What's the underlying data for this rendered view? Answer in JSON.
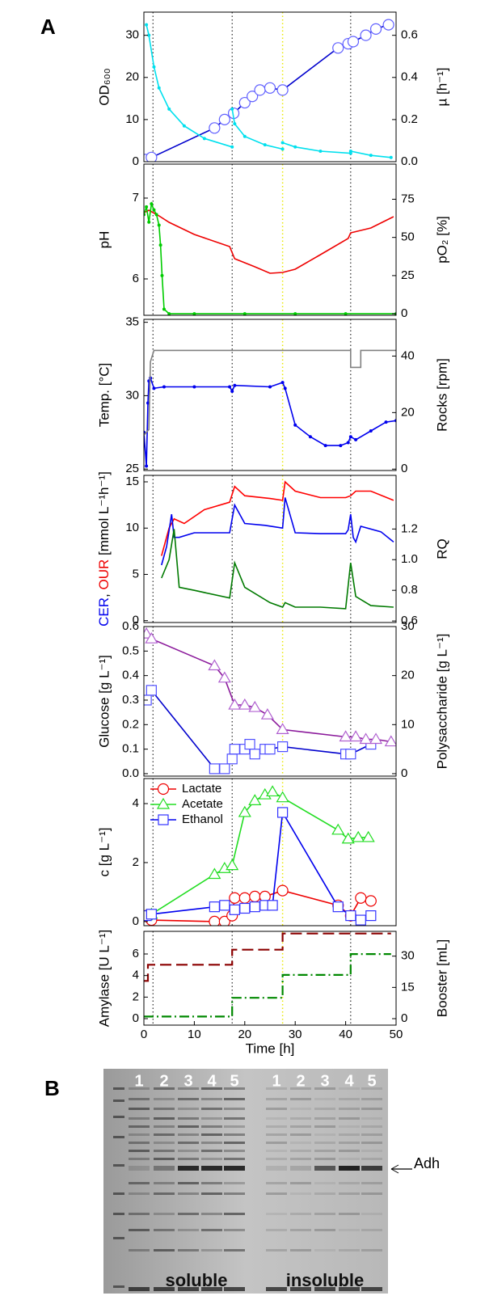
{
  "panel_labels": [
    "A",
    "B"
  ],
  "chart_data": [
    {
      "type": "line",
      "ylabel": "OD₆₀₀",
      "y2label": "µ [h⁻¹]",
      "xlim": [
        0,
        50
      ],
      "ylim": [
        0,
        35.5
      ],
      "yticks": [
        0,
        10,
        20,
        30
      ],
      "y2lim": [
        0,
        0.71
      ],
      "y2ticks": [
        {
          "value": 0,
          "label": "0.0"
        },
        0.2,
        0.4,
        0.6
      ],
      "vlines": [
        1.8,
        17.5,
        27.5,
        41
      ],
      "vline_colors": [
        "#000000",
        "#000000",
        "#e8e800",
        "#000000"
      ],
      "series": [
        {
          "color": "#0000cd",
          "marker": "circle",
          "marker_color": "#6060ff",
          "x": [
            0.3,
            1.5,
            14,
            16,
            17.8,
            20,
            21.5,
            23,
            25,
            27.5,
            38.5,
            40.5,
            41.5,
            44,
            46,
            48.5
          ],
          "values": [
            0.5,
            1,
            8,
            10,
            11.5,
            14,
            15.5,
            17,
            17.5,
            17,
            27,
            28,
            28.5,
            30,
            31.5,
            32.5
          ]
        },
        {
          "color": "#00e0ee",
          "marker": "dot",
          "axis": "y2",
          "x": [
            0.5,
            1,
            2,
            3,
            5,
            8,
            12,
            17.5,
            17.5,
            17.5,
            18,
            20,
            24,
            27.5,
            27.5,
            27.5,
            30,
            35,
            41,
            41,
            41,
            45,
            49
          ],
          "values": [
            0.65,
            0.6,
            0.45,
            0.35,
            0.25,
            0.17,
            0.11,
            0.07,
            null,
            0.25,
            0.18,
            0.12,
            0.08,
            0.06,
            null,
            0.09,
            0.07,
            0.05,
            0.04,
            null,
            0.05,
            0.03,
            0.02
          ]
        }
      ]
    },
    {
      "type": "line",
      "ylabel": "pH",
      "y2label": "pO₂ [%]",
      "xlim": [
        0,
        50
      ],
      "ylim": [
        5.55,
        7.42
      ],
      "yticks": [
        6,
        7
      ],
      "y2lim": [
        -1,
        98
      ],
      "y2ticks": [
        0,
        25,
        50,
        75
      ],
      "series": [
        {
          "color": "#ee0000",
          "marker": "none",
          "x": [
            0,
            1,
            3,
            5,
            10,
            17,
            18,
            22,
            25,
            27.5,
            30,
            35,
            40.5,
            41,
            45,
            49.5
          ],
          "values": [
            6.82,
            6.85,
            6.78,
            6.7,
            6.55,
            6.4,
            6.25,
            6.15,
            6.07,
            6.08,
            6.12,
            6.3,
            6.5,
            6.57,
            6.63,
            6.77
          ]
        },
        {
          "color": "#00cc00",
          "marker": "dot",
          "axis": "y2",
          "x": [
            0,
            0.5,
            1,
            1.5,
            2,
            2.5,
            3,
            3.3,
            3.6,
            4,
            5,
            10,
            20,
            30,
            40,
            50
          ],
          "values": [
            65,
            70,
            60,
            72,
            68,
            65,
            58,
            45,
            25,
            3,
            0,
            0,
            0,
            0,
            0,
            0
          ]
        }
      ]
    },
    {
      "type": "line",
      "ylabel": "Temp. [°C]",
      "y2label": "Rocks [rpm]",
      "xlim": [
        0,
        50
      ],
      "ylim": [
        24.9,
        35.2
      ],
      "yticks": [
        25,
        30,
        35
      ],
      "y2lim": [
        -0.5,
        53
      ],
      "y2ticks": [
        0,
        20,
        40
      ],
      "series": [
        {
          "color": "#0000ee",
          "marker": "dot",
          "x": [
            0,
            0.5,
            0.8,
            1,
            1.3,
            2,
            4,
            10,
            17,
            17.5,
            18,
            25,
            27.5,
            28,
            30,
            33,
            36,
            39,
            40.5,
            41,
            42,
            45,
            48,
            50
          ],
          "values": [
            27.5,
            25.2,
            29.5,
            31,
            31.2,
            30.5,
            30.6,
            30.6,
            30.6,
            30.3,
            30.7,
            30.6,
            30.9,
            30.5,
            28,
            27.2,
            26.6,
            26.6,
            26.8,
            27.2,
            27,
            27.6,
            28.2,
            28.3
          ]
        },
        {
          "color": "#808080",
          "marker": "none",
          "axis": "y2",
          "x": [
            0,
            1,
            1.3,
            2,
            41,
            41,
            43,
            43,
            50
          ],
          "values": [
            12,
            14,
            38,
            42,
            42,
            36,
            36,
            42,
            42
          ]
        }
      ]
    },
    {
      "type": "line",
      "ylabel": [
        "CER",
        ", ",
        "OUR",
        " [mmol L⁻¹h⁻¹]"
      ],
      "ylabel_colors": [
        "#0000ee",
        "#000000",
        "#ee0000",
        "#000000"
      ],
      "y2label": "RQ",
      "xlim": [
        0,
        50
      ],
      "ylim": [
        -0.2,
        15.7
      ],
      "yticks": [
        0,
        5,
        10,
        15
      ],
      "y2lim": [
        0.59,
        1.55
      ],
      "y2ticks": [
        0.6,
        0.8,
        {
          "value": 1,
          "label": "1.0"
        },
        1.2
      ],
      "series": [
        {
          "color": "#ff0000",
          "marker": "none",
          "x": [
            3.5,
            5,
            6,
            8,
            12,
            17,
            18,
            20,
            25,
            27.5,
            28,
            30,
            35,
            40,
            41,
            42,
            45,
            49.5
          ],
          "values": [
            7,
            10,
            11,
            10.5,
            12,
            12.8,
            14.5,
            13.5,
            13.2,
            13,
            15,
            14,
            13.3,
            13.3,
            13.5,
            14,
            14,
            13
          ]
        },
        {
          "color": "#0000ee",
          "marker": "none",
          "x": [
            3.5,
            4.5,
            5.5,
            6,
            7,
            10,
            17,
            18,
            20,
            24,
            27.5,
            28,
            30,
            35,
            40,
            40.5,
            41,
            41.5,
            42,
            43,
            47,
            49.5
          ],
          "values": [
            6,
            8,
            11.5,
            9,
            9,
            9.5,
            9.5,
            12.5,
            10.5,
            10.3,
            10,
            13.3,
            9.5,
            9.4,
            9.4,
            9.8,
            11.5,
            9,
            8.5,
            10.2,
            9.6,
            8.5
          ]
        },
        {
          "color": "#007a00",
          "marker": "none",
          "axis": "y2",
          "x": [
            3.5,
            5,
            6,
            7,
            10,
            17,
            18,
            20,
            25,
            27.5,
            28,
            30,
            35,
            40,
            41,
            42,
            45,
            49.5
          ],
          "values": [
            0.88,
            1.0,
            1.2,
            0.82,
            0.8,
            0.75,
            0.98,
            0.82,
            0.72,
            0.69,
            0.72,
            0.69,
            0.69,
            0.68,
            0.98,
            0.76,
            0.7,
            0.69
          ]
        }
      ]
    },
    {
      "type": "line",
      "ylabel": "Glucose [g L⁻¹]",
      "y2label": "Polysaccharide [g L⁻¹]",
      "xlim": [
        0,
        50
      ],
      "ylim": [
        -0.01,
        0.6
      ],
      "yticks": [
        {
          "value": 0,
          "label": "0.0"
        },
        0.1,
        0.2,
        0.3,
        0.4,
        0.5,
        0.6
      ],
      "y2lim": [
        -0.5,
        30
      ],
      "y2ticks": [
        0,
        10,
        20,
        30
      ],
      "series": [
        {
          "color": "#0000cd",
          "marker": "square",
          "marker_color": "#5050ff",
          "x": [
            0.5,
            1.5,
            14,
            16,
            17.5,
            18,
            20,
            21,
            22,
            24,
            25,
            27.5,
            40,
            41,
            45
          ],
          "values": [
            0.3,
            0.34,
            0.02,
            0.02,
            0.06,
            0.1,
            0.1,
            0.12,
            0.08,
            0.1,
            0.1,
            0.11,
            0.08,
            0.08,
            0.12
          ]
        },
        {
          "color": "#8b1a9b",
          "marker": "triangle",
          "marker_color": "#b060d0",
          "axis": "y2",
          "x": [
            0.5,
            1.5,
            14,
            16,
            18,
            20,
            22,
            24.5,
            27.5,
            40,
            42,
            44,
            46,
            49
          ],
          "values": [
            28.5,
            27.5,
            22,
            19.5,
            14,
            14,
            13.5,
            12,
            9,
            7.5,
            7.5,
            7,
            7,
            6.5
          ]
        }
      ]
    },
    {
      "type": "line",
      "ylabel": "c [g L⁻¹]",
      "xlim": [
        0,
        50
      ],
      "ylim": [
        -0.14,
        4.85
      ],
      "yticks": [
        0,
        2,
        4
      ],
      "series": [
        {
          "name": "Lactate",
          "color": "#ee0000",
          "marker": "circle",
          "x": [
            0.5,
            1.5,
            14,
            16,
            17.5,
            18,
            20,
            22,
            24,
            27.5,
            38.5,
            41,
            43,
            45
          ],
          "values": [
            0.2,
            0.05,
            0,
            0,
            0.2,
            0.8,
            0.8,
            0.85,
            0.85,
            1.05,
            0.55,
            0.2,
            0.8,
            0.7
          ]
        },
        {
          "name": "Acetate",
          "color": "#22dd22",
          "marker": "triangle",
          "x": [
            0.5,
            1.5,
            14,
            16,
            17.5,
            20,
            22,
            24,
            25.5,
            27.5,
            38.5,
            40.5,
            42.5,
            44.5
          ],
          "values": [
            0.2,
            0.25,
            1.6,
            1.8,
            1.9,
            3.7,
            4.1,
            4.3,
            4.4,
            4.2,
            3.1,
            2.8,
            2.85,
            2.85
          ]
        },
        {
          "name": "Ethanol",
          "color": "#0000ee",
          "marker": "square",
          "marker_color": "#3333ff",
          "x": [
            0.5,
            1.5,
            14,
            16,
            18,
            20,
            22,
            24,
            25.5,
            27.5,
            38.5,
            41,
            43,
            45
          ],
          "values": [
            0.2,
            0.25,
            0.5,
            0.55,
            0.4,
            0.45,
            0.5,
            0.55,
            0.55,
            3.7,
            0.5,
            0.2,
            0.05,
            0.2
          ]
        }
      ]
    },
    {
      "type": "line",
      "ylabel": "Amylase [U L⁻¹]",
      "y2label": "Booster [mL]",
      "xlabel": "Time [h]",
      "xlim": [
        0,
        50
      ],
      "xticks": [
        0,
        10,
        20,
        30,
        40,
        50
      ],
      "ylim": [
        -0.6,
        8.1
      ],
      "yticks": [
        0,
        2,
        4,
        6
      ],
      "y2lim": [
        -3.1,
        41.9
      ],
      "y2ticks": [
        0,
        15,
        30
      ],
      "series": [
        {
          "color": "#8b0000",
          "marker": "none",
          "dash": "dashed",
          "x": [
            0,
            0.8,
            0.8,
            17.5,
            17.5,
            27.5,
            27.5,
            49
          ],
          "values": [
            3.5,
            3.5,
            5,
            5,
            6.4,
            6.4,
            7.9,
            7.9
          ]
        },
        {
          "color": "#008800",
          "marker": "none",
          "dash": "dashdot",
          "axis": "y2",
          "x": [
            0,
            17.5,
            17.5,
            27.5,
            27.5,
            41,
            41,
            49
          ],
          "values": [
            1,
            1,
            10,
            10,
            21,
            21,
            31,
            31
          ]
        }
      ]
    }
  ],
  "gel": {
    "lanes_soluble": [
      "1",
      "2",
      "3",
      "4",
      "5"
    ],
    "lanes_insoluble": [
      "1",
      "2",
      "3",
      "4",
      "5"
    ],
    "soluble": "soluble",
    "insoluble": "insoluble",
    "band_label": "Adh"
  }
}
